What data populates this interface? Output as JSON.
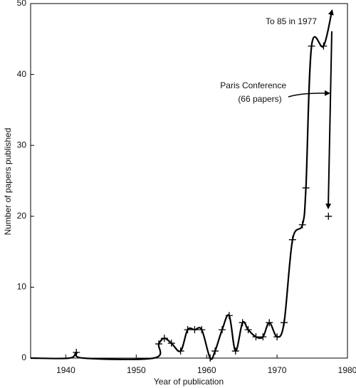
{
  "chart_data": {
    "type": "line",
    "xlabel": "Year of publication",
    "ylabel": "Number of papers published",
    "xlim": [
      1935,
      1980
    ],
    "xticks": [
      1940,
      1950,
      1960,
      1970,
      1980
    ],
    "ylim": [
      0,
      50
    ],
    "yticks": [
      0,
      10,
      20,
      30,
      40,
      50
    ],
    "annotations": [
      "To 85 in 1977",
      "Paris Conference",
      "(66 papers)"
    ],
    "series": [
      {
        "style": "curve",
        "color": "#000000",
        "x": [
          1935,
          1940.5,
          1941.5,
          1942.5,
          1952.5,
          1953.2,
          1954,
          1955,
          1956.3,
          1957.3,
          1958.3,
          1959.3,
          1960.5,
          1961.2,
          1962.2,
          1963.2,
          1964.1,
          1965.1,
          1965.9,
          1967,
          1968,
          1968.9,
          1970,
          1971,
          1972.2,
          1973.6,
          1974.1,
          1974.9,
          1976.6,
          1977.8
        ],
        "values": [
          0,
          0,
          0.8,
          0,
          0,
          2,
          2.8,
          2.1,
          1,
          4,
          4,
          4,
          0,
          1,
          4,
          6,
          1,
          5,
          4,
          3,
          3,
          5,
          3,
          5,
          16.7,
          18.8,
          24,
          44,
          44,
          49
        ]
      },
      {
        "style": "markers",
        "color": "#000000",
        "x": [
          1941.5,
          1953.2,
          1954,
          1955,
          1956.3,
          1957.3,
          1958.3,
          1959.3,
          1960.5,
          1961.2,
          1962.2,
          1963.2,
          1964.1,
          1965.1,
          1965.9,
          1967,
          1968,
          1968.9,
          1970,
          1971,
          1972.2,
          1973.6,
          1974.1,
          1974.9,
          1976.6,
          1977.3
        ],
        "values": [
          0.8,
          2,
          2.8,
          2.1,
          1,
          4,
          4,
          4,
          0,
          1,
          4,
          6,
          1,
          5,
          4,
          3,
          3,
          5,
          3,
          5,
          16.7,
          18.8,
          24,
          44,
          44,
          20
        ]
      }
    ]
  }
}
